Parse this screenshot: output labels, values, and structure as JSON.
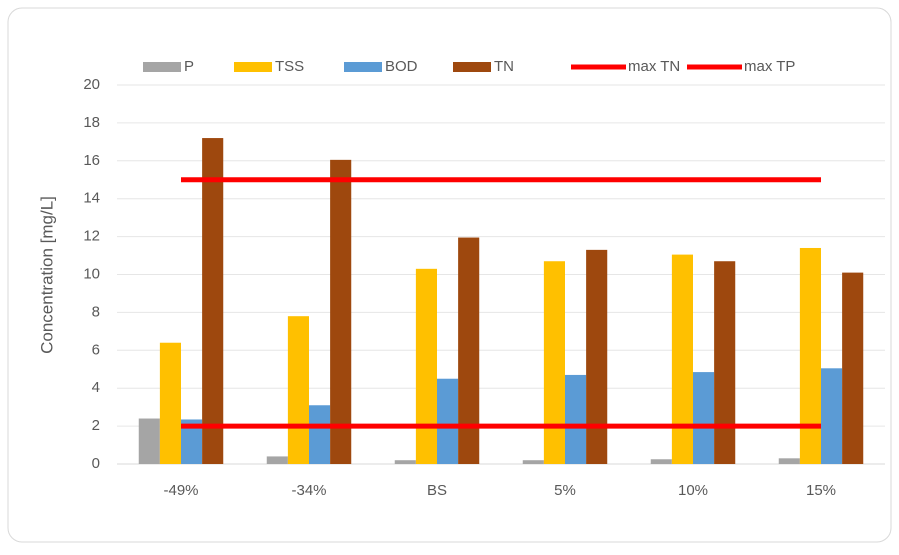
{
  "chart_data": {
    "type": "bar",
    "y_label": "Concentration [mg/L]",
    "categories": [
      "-49%",
      "-34%",
      "BS",
      "5%",
      "10%",
      "15%"
    ],
    "series": [
      {
        "name": "P",
        "type": "bar",
        "color": "#a5a5a5",
        "values": [
          2.4,
          0.4,
          0.2,
          0.2,
          0.25,
          0.3
        ]
      },
      {
        "name": "TSS",
        "type": "bar",
        "color": "#ffc000",
        "values": [
          6.4,
          7.8,
          10.3,
          10.7,
          11.05,
          11.4
        ]
      },
      {
        "name": "BOD",
        "type": "bar",
        "color": "#5b9bd5",
        "values": [
          2.35,
          3.1,
          4.5,
          4.7,
          4.85,
          5.05
        ]
      },
      {
        "name": "TN",
        "type": "bar",
        "color": "#9e480e",
        "values": [
          17.2,
          16.05,
          11.95,
          11.3,
          10.7,
          10.1
        ]
      },
      {
        "name": "max TN",
        "type": "line",
        "color": "#ff0000",
        "values": [
          15,
          15,
          15,
          15,
          15,
          15
        ]
      },
      {
        "name": "max TP",
        "type": "line",
        "color": "#ff0000",
        "values": [
          2,
          2,
          2,
          2,
          2,
          2
        ]
      }
    ],
    "ylim": [
      0,
      20
    ],
    "yticks": [
      0,
      2,
      4,
      6,
      8,
      10,
      12,
      14,
      16,
      18,
      20
    ],
    "grid": true,
    "legend": "top"
  }
}
